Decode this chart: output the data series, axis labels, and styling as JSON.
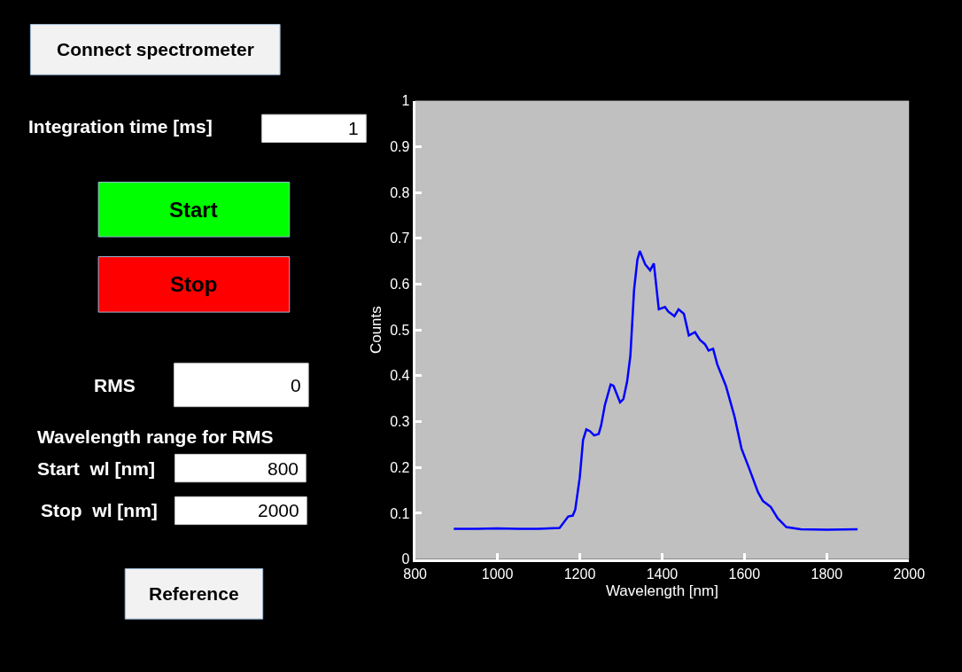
{
  "chart_data": [
    {
      "type": "other",
      "annotations": [
        "Connect spectrometer",
        "Integration time [ms]",
        "1",
        "Start",
        "Stop",
        "RMS",
        "0",
        "Wavelength range for RMS",
        "Start  wl [nm]",
        "800",
        "Stop  wl [nm]",
        "2000",
        "Reference"
      ]
    },
    {
      "type": "line",
      "xlabel": "Wavelength [nm]",
      "ylabel": "Counts",
      "xlim": [
        800,
        2000
      ],
      "xticks": [
        800,
        1000,
        1200,
        1400,
        1600,
        1800,
        2000
      ],
      "ylim": [
        0,
        1
      ],
      "yticks": [
        0,
        0.1,
        0.2,
        0.3,
        0.4,
        0.5,
        0.6,
        0.7,
        0.8,
        0.9,
        1
      ],
      "grid": false,
      "marker": "none",
      "line_style": "solid",
      "series": [
        {
          "color": "#0000ff",
          "x": [
            894,
            950,
            1000,
            1050,
            1100,
            1151,
            1172,
            1183,
            1189,
            1200,
            1208,
            1216,
            1225,
            1235,
            1246,
            1252,
            1261,
            1275,
            1282,
            1298,
            1306,
            1315,
            1323,
            1332,
            1340,
            1346,
            1359,
            1371,
            1380,
            1392,
            1407,
            1415,
            1430,
            1440,
            1453,
            1465,
            1480,
            1492,
            1504,
            1513,
            1524,
            1534,
            1555,
            1576,
            1593,
            1612,
            1633,
            1645,
            1664,
            1681,
            1702,
            1737,
            1800,
            1875
          ],
          "values": [
            0.066,
            0.066,
            0.067,
            0.066,
            0.066,
            0.068,
            0.093,
            0.095,
            0.108,
            0.178,
            0.26,
            0.283,
            0.279,
            0.27,
            0.273,
            0.292,
            0.336,
            0.381,
            0.378,
            0.342,
            0.349,
            0.387,
            0.444,
            0.588,
            0.653,
            0.672,
            0.643,
            0.63,
            0.645,
            0.545,
            0.55,
            0.54,
            0.53,
            0.545,
            0.535,
            0.488,
            0.495,
            0.478,
            0.469,
            0.455,
            0.459,
            0.425,
            0.378,
            0.311,
            0.241,
            0.197,
            0.146,
            0.127,
            0.114,
            0.089,
            0.07,
            0.065,
            0.064,
            0.065
          ]
        }
      ]
    }
  ]
}
